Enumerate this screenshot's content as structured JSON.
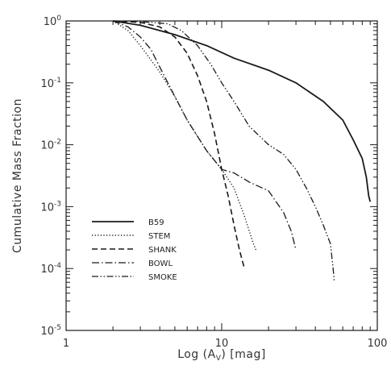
{
  "chart_data": {
    "type": "line",
    "xlabel": "Log (A_V) [mag]",
    "ylabel": "Cumulative Mass Fraction",
    "xscale": "log",
    "yscale": "log",
    "xlim": [
      1,
      100
    ],
    "ylim": [
      1e-05,
      1
    ],
    "x_tick_labels": [
      "1",
      "10",
      "100"
    ],
    "y_tick_labels": [
      {
        "base": "10",
        "exp": "0"
      },
      {
        "base": "10",
        "exp": "-1"
      },
      {
        "base": "10",
        "exp": "-2"
      },
      {
        "base": "10",
        "exp": "-3"
      },
      {
        "base": "10",
        "exp": "-4"
      },
      {
        "base": "10",
        "exp": "-5"
      }
    ],
    "legend_position": "bottom-left",
    "series": [
      {
        "name": "B59",
        "style": "solid",
        "x": [
          2.0,
          3.0,
          5.0,
          8.0,
          12.0,
          20.0,
          30.0,
          45.0,
          60.0,
          70.0,
          80.0,
          85.0,
          88.0,
          90.0
        ],
        "y": [
          1.0,
          0.85,
          0.6,
          0.4,
          0.25,
          0.16,
          0.1,
          0.05,
          0.025,
          0.012,
          0.006,
          0.003,
          0.0015,
          0.0012
        ]
      },
      {
        "name": "STEM",
        "style": "dotted",
        "x": [
          2.0,
          2.5,
          3.0,
          4.0,
          5.0,
          6.0,
          8.0,
          10.0,
          12.0,
          14.0,
          16.0,
          16.6
        ],
        "y": [
          1.0,
          0.7,
          0.4,
          0.15,
          0.06,
          0.025,
          0.008,
          0.004,
          0.002,
          0.0007,
          0.00025,
          0.0002
        ]
      },
      {
        "name": "SHANK",
        "style": "dashed",
        "x": [
          2.0,
          3.0,
          4.0,
          5.0,
          6.0,
          7.0,
          8.0,
          9.0,
          10.0,
          11.0,
          12.0,
          13.0,
          14.0
        ],
        "y": [
          1.0,
          0.95,
          0.8,
          0.55,
          0.3,
          0.13,
          0.05,
          0.015,
          0.004,
          0.0015,
          0.0005,
          0.0002,
          0.0001
        ]
      },
      {
        "name": "BOWL",
        "style": "dashdot",
        "x": [
          2.0,
          2.5,
          3.0,
          3.5,
          4.0,
          5.0,
          6.0,
          8.0,
          10.0,
          12.0,
          15.0,
          20.0,
          25.0,
          28.0,
          30.0
        ],
        "y": [
          1.0,
          0.8,
          0.55,
          0.35,
          0.18,
          0.06,
          0.025,
          0.008,
          0.004,
          0.0035,
          0.0025,
          0.0018,
          0.0008,
          0.0004,
          0.0002
        ]
      },
      {
        "name": "SMOKE",
        "style": "dashdotdot",
        "x": [
          2.5,
          3.5,
          4.5,
          5.5,
          7.0,
          8.5,
          10.0,
          12.0,
          15.0,
          20.0,
          25.0,
          30.0,
          35.0,
          40.0,
          45.0,
          50.0,
          52.0,
          53.0
        ],
        "y": [
          1.0,
          0.95,
          0.9,
          0.7,
          0.4,
          0.2,
          0.1,
          0.05,
          0.02,
          0.01,
          0.007,
          0.004,
          0.002,
          0.001,
          0.0005,
          0.00025,
          0.0001,
          6e-05
        ]
      }
    ]
  }
}
